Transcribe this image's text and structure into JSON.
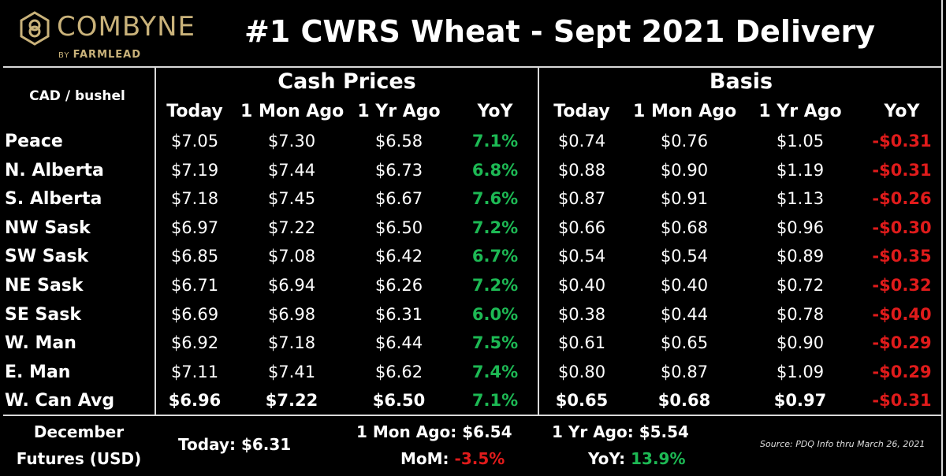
{
  "brand": {
    "name": "COMBYNE",
    "by": "BY",
    "sub": "FARMLEAD",
    "accent": "#c9b27a"
  },
  "title": "#1 CWRS Wheat - Sept 2021 Delivery",
  "unit_label": "CAD / bushel",
  "sections": {
    "cash": "Cash Prices",
    "basis": "Basis"
  },
  "columns": [
    "Today",
    "1 Mon Ago",
    "1 Yr Ago",
    "YoY"
  ],
  "rows": [
    {
      "region": "Peace",
      "cash": [
        "$7.05",
        "$7.30",
        "$6.58",
        "7.1%"
      ],
      "basis": [
        "$0.74",
        "$0.76",
        "$1.05",
        "-$0.31"
      ]
    },
    {
      "region": "N. Alberta",
      "cash": [
        "$7.19",
        "$7.44",
        "$6.73",
        "6.8%"
      ],
      "basis": [
        "$0.88",
        "$0.90",
        "$1.19",
        "-$0.31"
      ]
    },
    {
      "region": "S. Alberta",
      "cash": [
        "$7.18",
        "$7.45",
        "$6.67",
        "7.6%"
      ],
      "basis": [
        "$0.87",
        "$0.91",
        "$1.13",
        "-$0.26"
      ]
    },
    {
      "region": "NW Sask",
      "cash": [
        "$6.97",
        "$7.22",
        "$6.50",
        "7.2%"
      ],
      "basis": [
        "$0.66",
        "$0.68",
        "$0.96",
        "-$0.30"
      ]
    },
    {
      "region": "SW Sask",
      "cash": [
        "$6.85",
        "$7.08",
        "$6.42",
        "6.7%"
      ],
      "basis": [
        "$0.54",
        "$0.54",
        "$0.89",
        "-$0.35"
      ]
    },
    {
      "region": "NE Sask",
      "cash": [
        "$6.71",
        "$6.94",
        "$6.26",
        "7.2%"
      ],
      "basis": [
        "$0.40",
        "$0.40",
        "$0.72",
        "-$0.32"
      ]
    },
    {
      "region": "SE Sask",
      "cash": [
        "$6.69",
        "$6.98",
        "$6.31",
        "6.0%"
      ],
      "basis": [
        "$0.38",
        "$0.44",
        "$0.78",
        "-$0.40"
      ]
    },
    {
      "region": "W. Man",
      "cash": [
        "$6.92",
        "$7.18",
        "$6.44",
        "7.5%"
      ],
      "basis": [
        "$0.61",
        "$0.65",
        "$0.90",
        "-$0.29"
      ]
    },
    {
      "region": "E. Man",
      "cash": [
        "$7.11",
        "$7.41",
        "$6.62",
        "7.4%"
      ],
      "basis": [
        "$0.80",
        "$0.87",
        "$1.09",
        "-$0.29"
      ]
    },
    {
      "region": "W. Can Avg",
      "cash": [
        "$6.96",
        "$7.22",
        "$6.50",
        "7.1%"
      ],
      "basis": [
        "$0.65",
        "$0.68",
        "$0.97",
        "-$0.31"
      ],
      "emphasis": true
    }
  ],
  "footer": {
    "label_line1": "December",
    "label_line2": "Futures (USD)",
    "today_label": "Today:",
    "today_value": "$6.31",
    "mon_label": "1 Mon Ago:",
    "mon_value": "$6.54",
    "yr_label": "1 Yr Ago:",
    "yr_value": "$5.54",
    "mom_label": "MoM:",
    "mom_value": "-3.5%",
    "yoy_label": "YoY:",
    "yoy_value": "13.9%",
    "source": "Source: PDQ Info thru March 26, 2021"
  },
  "colors": {
    "positive": "#1db954",
    "negative": "#e01b1b",
    "rule": "#d9d9d9"
  }
}
